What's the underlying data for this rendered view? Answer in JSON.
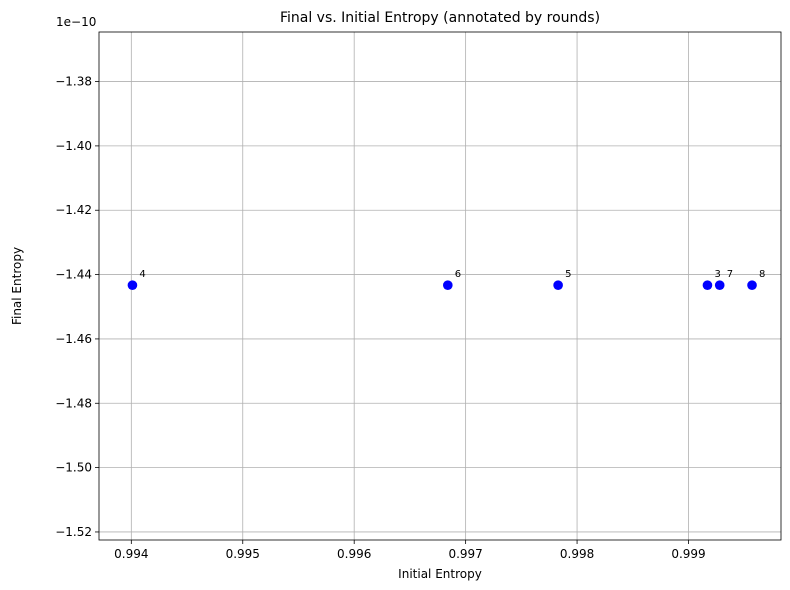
{
  "chart_data": {
    "type": "scatter",
    "title": "Final vs. Initial Entropy (annotated by rounds)",
    "xlabel": "Initial Entropy",
    "ylabel": "Final Entropy",
    "offset_text": "1e−10",
    "xlim": [
      0.99371,
      0.99983
    ],
    "ylim": [
      -1.5225,
      -1.3646
    ],
    "xticks": [
      0.994,
      0.995,
      0.996,
      0.997,
      0.998,
      0.999
    ],
    "xtick_labels": [
      "0.994",
      "0.995",
      "0.996",
      "0.997",
      "0.998",
      "0.999"
    ],
    "yticks": [
      -1.38,
      -1.4,
      -1.42,
      -1.44,
      -1.46,
      -1.48,
      -1.5,
      -1.52
    ],
    "ytick_labels": [
      "−1.38",
      "−1.40",
      "−1.42",
      "−1.44",
      "−1.46",
      "−1.48",
      "−1.50",
      "−1.52"
    ],
    "grid": true,
    "marker_color": "#0000ff",
    "points": [
      {
        "x": 0.99401,
        "y": -1.4433,
        "label": "4"
      },
      {
        "x": 0.99684,
        "y": -1.4433,
        "label": "6"
      },
      {
        "x": 0.99783,
        "y": -1.4433,
        "label": "5"
      },
      {
        "x": 0.99917,
        "y": -1.4433,
        "label": "3"
      },
      {
        "x": 0.99928,
        "y": -1.4433,
        "label": "7"
      },
      {
        "x": 0.99957,
        "y": -1.4433,
        "label": "8"
      }
    ]
  }
}
